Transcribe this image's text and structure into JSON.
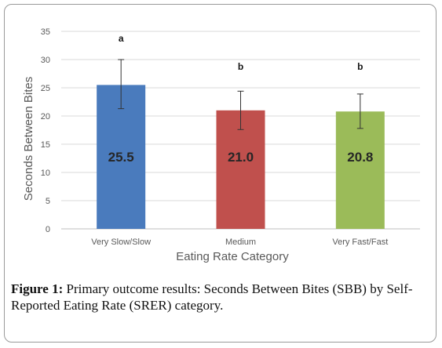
{
  "chart_data": {
    "type": "bar",
    "categories": [
      "Very Slow/Slow",
      "Medium",
      "Very Fast/Fast"
    ],
    "values": [
      25.5,
      21.0,
      20.8
    ],
    "value_labels": [
      "25.5",
      "21.0",
      "20.8"
    ],
    "error_high": [
      30.0,
      24.4,
      23.9
    ],
    "error_low": [
      21.3,
      17.6,
      17.8
    ],
    "significance_letters": [
      "a",
      "b",
      "b"
    ],
    "colors": [
      "#4a7bbd",
      "#c0504d",
      "#9bbb59"
    ],
    "xlabel": "Eating Rate Category",
    "ylabel": "Seconds Between Bites",
    "ylim": [
      0,
      35
    ],
    "yticks": [
      0,
      5,
      10,
      15,
      20,
      25,
      30,
      35
    ],
    "grid": true
  },
  "caption": {
    "label": "Figure 1:",
    "text": " Primary outcome results: Seconds Between Bites (SBB) by Self-Reported Eating Rate (SRER) category."
  }
}
